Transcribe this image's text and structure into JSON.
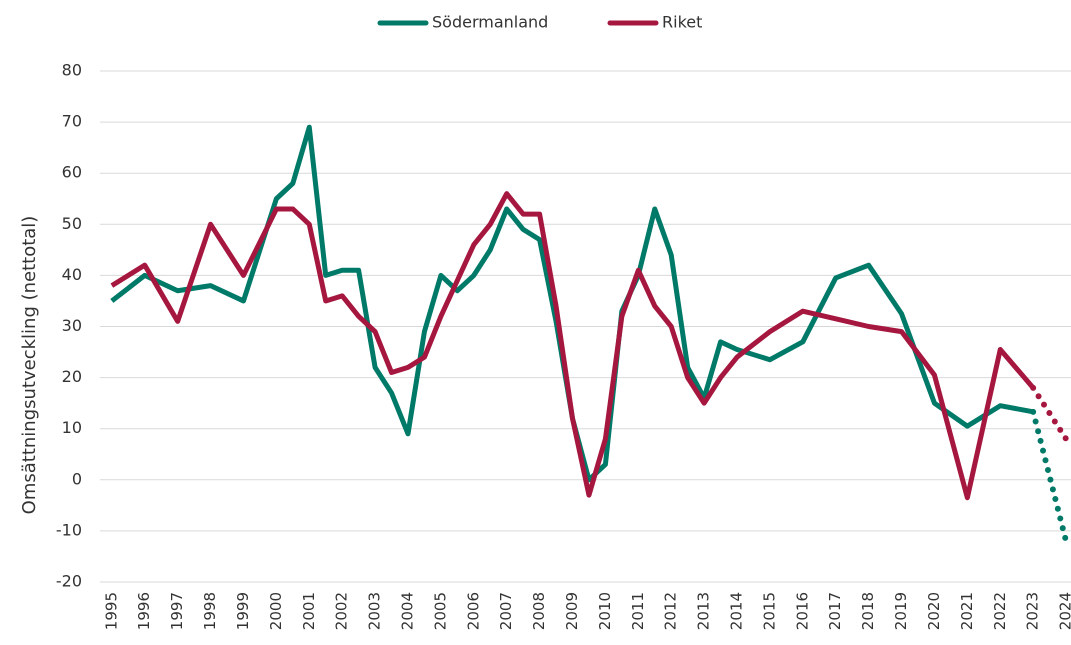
{
  "chart_data": {
    "type": "line",
    "y_label": "Omsättningsutveckling (nettotal)",
    "x": [
      1995,
      1996,
      1997,
      1998,
      1999,
      2000,
      2000.5,
      2001,
      2001.5,
      2002,
      2002.5,
      2003,
      2003.5,
      2004,
      2004.5,
      2005,
      2005.5,
      2006,
      2006.5,
      2007,
      2007.5,
      2008,
      2008.5,
      2009,
      2009.5,
      2010,
      2010.5,
      2011,
      2011.5,
      2012,
      2012.5,
      2013,
      2013.5,
      2014,
      2015,
      2016,
      2017,
      2018,
      2019,
      2020,
      2021,
      2022,
      2023,
      2024
    ],
    "series": [
      {
        "name": "Södermanland",
        "color": "#007a68",
        "values": [
          35,
          40,
          37,
          38,
          35,
          55,
          58,
          69,
          40,
          41,
          41,
          22,
          17,
          9,
          29,
          40,
          37,
          40,
          45,
          53,
          49,
          47,
          31,
          12,
          0,
          3,
          33,
          40,
          53,
          44,
          22,
          16,
          27,
          25.5,
          23.5,
          27,
          39.5,
          42,
          32.5,
          15,
          10.5,
          14.5,
          13.3,
          -12
        ]
      },
      {
        "name": "Riket",
        "color": "#a6173f",
        "values": [
          38,
          42,
          31,
          50,
          40,
          53,
          53,
          50,
          35,
          36,
          32,
          29,
          21,
          22,
          24,
          32,
          39,
          46,
          50,
          56,
          52,
          52,
          34,
          12,
          -3,
          8,
          32,
          41,
          34,
          30,
          20,
          15,
          20,
          24,
          29,
          33,
          31.5,
          30,
          29,
          20.5,
          -3.5,
          25.5,
          18,
          8
        ]
      }
    ],
    "dotted_last_segment": true,
    "xlim": [
      1994.64,
      2024.15
    ],
    "xticks": [
      1995,
      1996,
      1997,
      1998,
      1999,
      2000,
      2001,
      2002,
      2003,
      2004,
      2005,
      2006,
      2007,
      2008,
      2009,
      2010,
      2011,
      2012,
      2013,
      2014,
      2015,
      2016,
      2017,
      2018,
      2019,
      2020,
      2021,
      2022,
      2023,
      2024
    ],
    "ylim": [
      -20,
      80
    ],
    "yticks": [
      -20,
      -10,
      0,
      10,
      20,
      30,
      40,
      50,
      60,
      70,
      80
    ],
    "grid": true,
    "legend": "top"
  }
}
